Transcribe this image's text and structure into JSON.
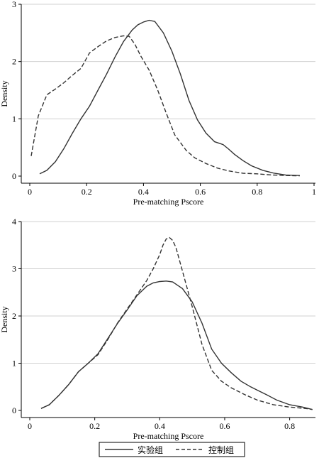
{
  "chart_data": [
    {
      "type": "line",
      "xlabel": "Pre-matching Pscore",
      "ylabel": "Density",
      "xlim": [
        0,
        1
      ],
      "ylim": [
        0,
        3
      ],
      "x_ticks": [
        "0",
        "0.2",
        "0.4",
        "0.6",
        "0.8",
        "1"
      ],
      "x_tick_values": [
        0,
        0.2,
        0.4,
        0.6,
        0.8,
        1
      ],
      "y_ticks": [
        "0",
        "1",
        "2",
        "3"
      ],
      "y_tick_values": [
        0,
        1,
        2,
        3
      ],
      "grid": "horizontal",
      "series": [
        {
          "name": "实验组",
          "style": "solid",
          "x": [
            0.035,
            0.06,
            0.09,
            0.12,
            0.15,
            0.18,
            0.21,
            0.24,
            0.27,
            0.3,
            0.33,
            0.36,
            0.38,
            0.4,
            0.42,
            0.44,
            0.47,
            0.5,
            0.53,
            0.56,
            0.59,
            0.62,
            0.65,
            0.68,
            0.7,
            0.72,
            0.75,
            0.78,
            0.82,
            0.86,
            0.9,
            0.95
          ],
          "y": [
            0.04,
            0.1,
            0.25,
            0.48,
            0.75,
            1.0,
            1.22,
            1.5,
            1.78,
            2.08,
            2.35,
            2.55,
            2.64,
            2.69,
            2.72,
            2.7,
            2.5,
            2.18,
            1.78,
            1.32,
            0.98,
            0.75,
            0.6,
            0.55,
            0.47,
            0.38,
            0.27,
            0.18,
            0.1,
            0.05,
            0.02,
            0.01
          ]
        },
        {
          "name": "控制组",
          "style": "dashed",
          "x": [
            0.005,
            0.03,
            0.06,
            0.09,
            0.12,
            0.15,
            0.18,
            0.21,
            0.24,
            0.27,
            0.3,
            0.33,
            0.35,
            0.37,
            0.39,
            0.42,
            0.45,
            0.48,
            0.51,
            0.55,
            0.58,
            0.62,
            0.66,
            0.7,
            0.75,
            0.8,
            0.85,
            0.9,
            0.95
          ],
          "y": [
            0.35,
            1.05,
            1.42,
            1.52,
            1.63,
            1.76,
            1.88,
            2.15,
            2.26,
            2.36,
            2.42,
            2.45,
            2.44,
            2.3,
            2.1,
            1.85,
            1.5,
            1.1,
            0.72,
            0.45,
            0.32,
            0.22,
            0.14,
            0.09,
            0.05,
            0.04,
            0.02,
            0.01,
            0.005
          ]
        }
      ]
    },
    {
      "type": "line",
      "xlabel": "Pre-matching Pscore",
      "ylabel": "Density",
      "xlim": [
        0,
        0.875
      ],
      "ylim": [
        0,
        4
      ],
      "x_ticks": [
        "0",
        "0.2",
        "0.4",
        "0.6",
        "0.8"
      ],
      "x_tick_values": [
        0,
        0.2,
        0.4,
        0.6,
        0.8
      ],
      "y_ticks": [
        "0",
        "1",
        "2",
        "3",
        "4"
      ],
      "y_tick_values": [
        0,
        1,
        2,
        3,
        4
      ],
      "grid": "horizontal",
      "series": [
        {
          "name": "实验组",
          "style": "solid",
          "x": [
            0.035,
            0.06,
            0.09,
            0.12,
            0.15,
            0.18,
            0.21,
            0.24,
            0.27,
            0.3,
            0.33,
            0.36,
            0.38,
            0.4,
            0.42,
            0.44,
            0.47,
            0.5,
            0.53,
            0.56,
            0.59,
            0.62,
            0.65,
            0.68,
            0.7,
            0.73,
            0.76,
            0.8,
            0.84,
            0.87
          ],
          "y": [
            0.04,
            0.12,
            0.32,
            0.55,
            0.82,
            1.0,
            1.2,
            1.52,
            1.84,
            2.13,
            2.43,
            2.63,
            2.7,
            2.73,
            2.74,
            2.72,
            2.58,
            2.3,
            1.85,
            1.3,
            1.0,
            0.8,
            0.62,
            0.5,
            0.43,
            0.33,
            0.22,
            0.12,
            0.07,
            0.02
          ]
        },
        {
          "name": "控制组",
          "style": "dashed",
          "x": [
            0.035,
            0.06,
            0.09,
            0.12,
            0.15,
            0.18,
            0.21,
            0.24,
            0.27,
            0.3,
            0.33,
            0.36,
            0.38,
            0.4,
            0.41,
            0.42,
            0.43,
            0.44,
            0.45,
            0.47,
            0.5,
            0.53,
            0.56,
            0.59,
            0.62,
            0.66,
            0.7,
            0.75,
            0.8,
            0.85,
            0.87
          ],
          "y": [
            0.04,
            0.12,
            0.32,
            0.55,
            0.82,
            1.0,
            1.18,
            1.5,
            1.85,
            2.15,
            2.45,
            2.75,
            3.0,
            3.3,
            3.5,
            3.63,
            3.66,
            3.6,
            3.45,
            2.95,
            2.2,
            1.4,
            0.85,
            0.62,
            0.48,
            0.34,
            0.22,
            0.12,
            0.07,
            0.04,
            0.02
          ]
        }
      ]
    }
  ],
  "legend": {
    "items": [
      {
        "label": "实验组",
        "style": "solid"
      },
      {
        "label": "控制组",
        "style": "dashed"
      }
    ]
  }
}
